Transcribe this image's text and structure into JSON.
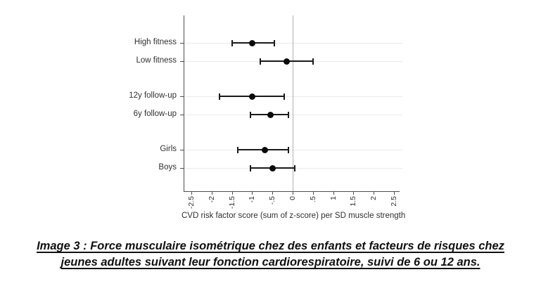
{
  "chart_data": {
    "type": "forest",
    "title": "",
    "xlabel": "CVD risk factor score (sum of z-score) per SD muscle strength",
    "ylabel": "",
    "xlim": [
      -2.5,
      2.5
    ],
    "xticks": [
      -2.5,
      -2,
      -1.5,
      -1,
      -0.5,
      0,
      0.5,
      1,
      1.5,
      2,
      2.5
    ],
    "xtick_labels": [
      "-2.5",
      "-2",
      "-1.5",
      "-1",
      "-.5",
      "0",
      ".5",
      "1",
      "1.5",
      "2",
      "2.5"
    ],
    "reference_line_x": 0,
    "grid": "horizontal-row-gridlines",
    "legend": "none",
    "marker": "filled-circle",
    "groups": [
      {
        "rows": [
          {
            "label": "High fitness",
            "estimate": -1.0,
            "ci_low": -1.5,
            "ci_high": -0.45
          },
          {
            "label": "Low fitness",
            "estimate": -0.15,
            "ci_low": -0.8,
            "ci_high": 0.5
          }
        ]
      },
      {
        "rows": [
          {
            "label": "12y follow-up",
            "estimate": -1.0,
            "ci_low": -1.8,
            "ci_high": -0.2
          },
          {
            "label": "6y follow-up",
            "estimate": -0.55,
            "ci_low": -1.05,
            "ci_high": -0.1
          }
        ]
      },
      {
        "rows": [
          {
            "label": "Girls",
            "estimate": -0.7,
            "ci_low": -1.35,
            "ci_high": -0.1
          },
          {
            "label": "Boys",
            "estimate": -0.5,
            "ci_low": -1.05,
            "ci_high": 0.05
          }
        ]
      }
    ]
  },
  "caption": {
    "line1": "Image 3 : Force musculaire isométrique chez des enfants et facteurs de risques chez",
    "line2": "jeunes adultes suivant leur fonction cardiorespiratoire, suivi de 6 ou 12 ans."
  },
  "colors": {
    "marker": "#0a0a0a",
    "ci_line": "#1a1a1a",
    "grid_line": "#ebebeb",
    "zero_line": "#b0b0b0",
    "axis_line": "#4d4d4d",
    "tick_text": "#303030"
  }
}
